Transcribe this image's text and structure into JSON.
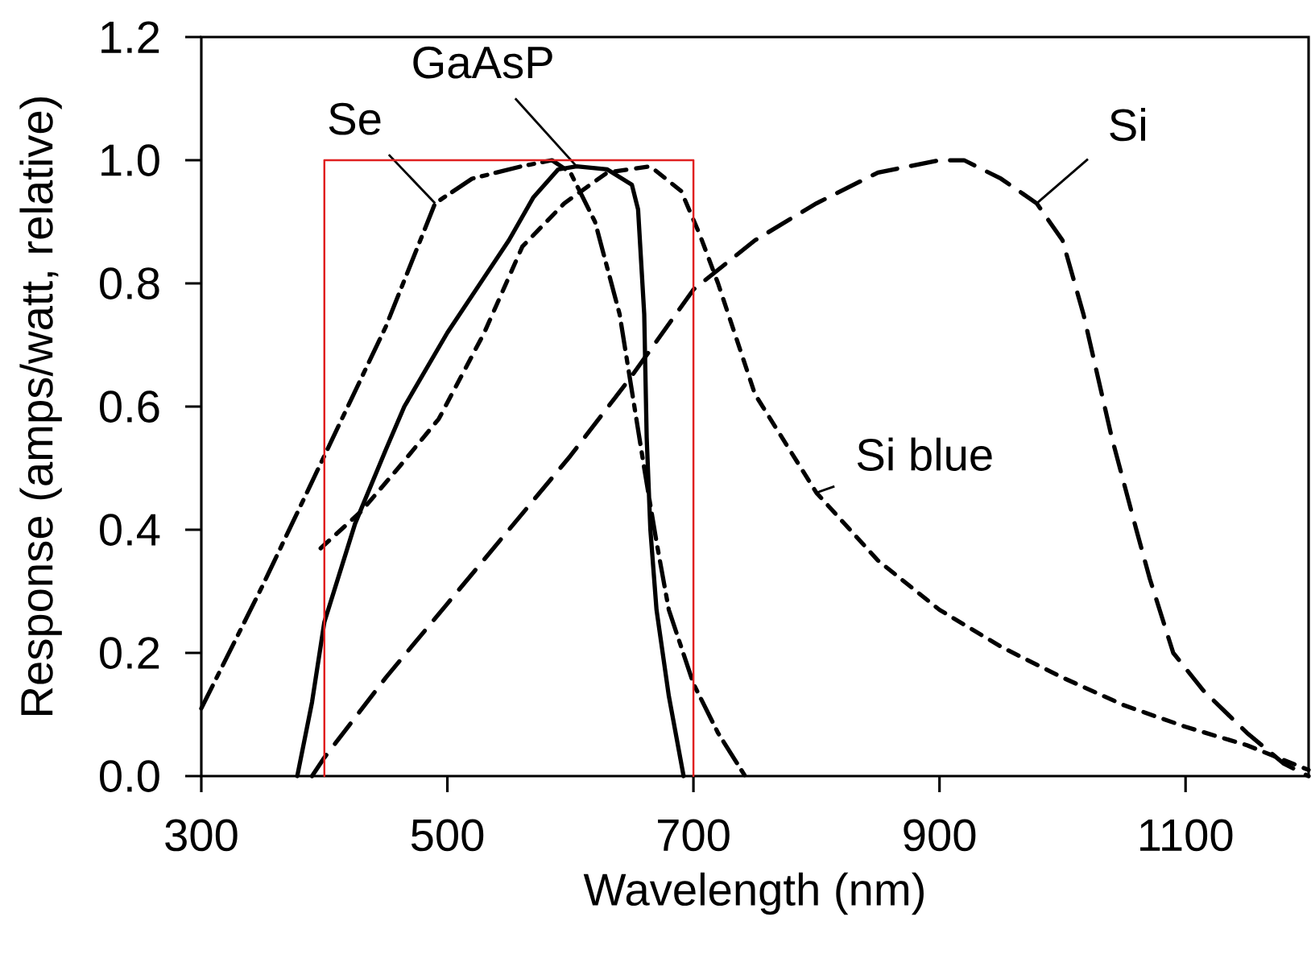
{
  "chart_data": {
    "type": "line",
    "xlabel": "Wavelength  (nm)",
    "ylabel": "Response (amps/watt, relative)",
    "xlim": [
      300,
      1200
    ],
    "ylim": [
      0,
      1.2
    ],
    "xticks": [
      300,
      500,
      700,
      900,
      1100
    ],
    "yticks": [
      {
        "value": 0,
        "label": "0.0"
      },
      {
        "value": 0.2,
        "label": "0.2"
      },
      {
        "value": 0.4,
        "label": "0.4"
      },
      {
        "value": 0.6,
        "label": "0.6"
      },
      {
        "value": 0.8,
        "label": "0.8"
      },
      {
        "value": 1.0,
        "label": "1.0"
      },
      {
        "value": 1.2,
        "label": "1.2"
      }
    ],
    "grid": false,
    "series": [
      {
        "name": "Se",
        "color": "#000000",
        "line_style": "dashdot",
        "x": [
          300,
          350,
          400,
          450,
          490,
          520,
          560,
          585,
          600,
          620,
          640,
          660,
          670,
          680,
          700,
          720,
          742
        ],
        "values": [
          0.11,
          0.31,
          0.52,
          0.73,
          0.93,
          0.97,
          0.99,
          1.0,
          0.98,
          0.9,
          0.75,
          0.5,
          0.38,
          0.27,
          0.15,
          0.07,
          0.0
        ]
      },
      {
        "name": "GaAsP",
        "color": "#000000",
        "line_style": "solid",
        "x": [
          378,
          390,
          400,
          425,
          450,
          465,
          500,
          530,
          550,
          570,
          590,
          605,
          630,
          650,
          655,
          660,
          662,
          665,
          670,
          680,
          692
        ],
        "values": [
          0.0,
          0.12,
          0.25,
          0.41,
          0.53,
          0.6,
          0.72,
          0.81,
          0.87,
          0.94,
          0.985,
          0.99,
          0.985,
          0.96,
          0.92,
          0.75,
          0.55,
          0.4,
          0.27,
          0.13,
          0.0
        ]
      },
      {
        "name": "Si blue",
        "color": "#000000",
        "line_style": "dotted",
        "x": [
          397,
          430,
          460,
          493,
          530,
          561,
          595,
          630,
          665,
          690,
          705,
          720,
          750,
          800,
          850,
          900,
          950,
          1000,
          1050,
          1100,
          1150,
          1200
        ],
        "values": [
          0.37,
          0.43,
          0.5,
          0.58,
          0.72,
          0.86,
          0.93,
          0.98,
          0.99,
          0.95,
          0.88,
          0.8,
          0.62,
          0.46,
          0.35,
          0.27,
          0.21,
          0.16,
          0.115,
          0.08,
          0.05,
          0.01
        ]
      },
      {
        "name": "Si",
        "color": "#000000",
        "line_style": "dashed",
        "x": [
          390,
          400,
          450,
          500,
          550,
          600,
          650,
          700,
          750,
          800,
          850,
          900,
          920,
          950,
          979,
          1000,
          1017,
          1040,
          1060,
          1071,
          1090,
          1114,
          1150,
          1180,
          1200
        ],
        "values": [
          0.0,
          0.03,
          0.16,
          0.28,
          0.4,
          0.52,
          0.65,
          0.79,
          0.87,
          0.93,
          0.98,
          1.0,
          1.0,
          0.97,
          0.93,
          0.87,
          0.75,
          0.55,
          0.4,
          0.32,
          0.2,
          0.14,
          0.07,
          0.02,
          0.0
        ]
      },
      {
        "color": "#e02020",
        "line_style": "solid",
        "x": [
          400,
          400,
          700,
          700
        ],
        "values": [
          0,
          1.0,
          1.0,
          0
        ]
      }
    ]
  }
}
